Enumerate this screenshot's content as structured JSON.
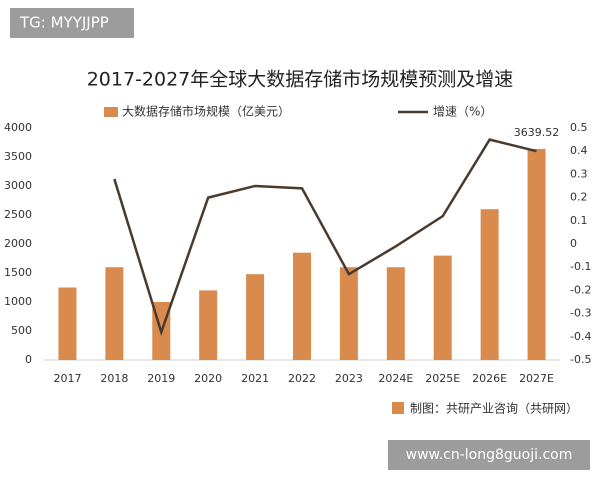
{
  "badge": "TG: MYYJJPP",
  "chart_data": {
    "type": "bar-line",
    "title": "2017-2027年全球大数据存储市场规模预测及增速",
    "categories": [
      "2017",
      "2018",
      "2019",
      "2020",
      "2021",
      "2022",
      "2023",
      "2024E",
      "2025E",
      "2026E",
      "2027E"
    ],
    "series": [
      {
        "name": "大数据存储市场规模（亿美元）",
        "color": "#d98b4e",
        "type": "bar",
        "axis": "y",
        "values": [
          1250,
          1600,
          1000,
          1200,
          1480,
          1850,
          1600,
          1600,
          1800,
          2600,
          3639.52
        ],
        "value_labels": [
          null,
          null,
          null,
          null,
          null,
          null,
          null,
          null,
          null,
          null,
          "3639.52"
        ]
      },
      {
        "name": "增速（%）",
        "color": "#4a3a2e",
        "type": "line",
        "axis": "y2",
        "values": [
          null,
          0.28,
          -0.38,
          0.2,
          0.25,
          0.24,
          -0.13,
          -0.01,
          0.12,
          0.45,
          0.4
        ]
      }
    ],
    "ylim": [
      0,
      4000
    ],
    "yticks": [
      0,
      500,
      1000,
      1500,
      2000,
      2500,
      3000,
      3500,
      4000
    ],
    "y2lim": [
      -0.5,
      0.5
    ],
    "y2ticks": [
      -0.5,
      -0.4,
      -0.3,
      -0.2,
      -0.1,
      0,
      0.1,
      0.2,
      0.3,
      0.4,
      0.5
    ],
    "legend": "top",
    "source": "制图：共研产业咨询（共研网）"
  },
  "watermark": "www.cn-long8guoji.com"
}
